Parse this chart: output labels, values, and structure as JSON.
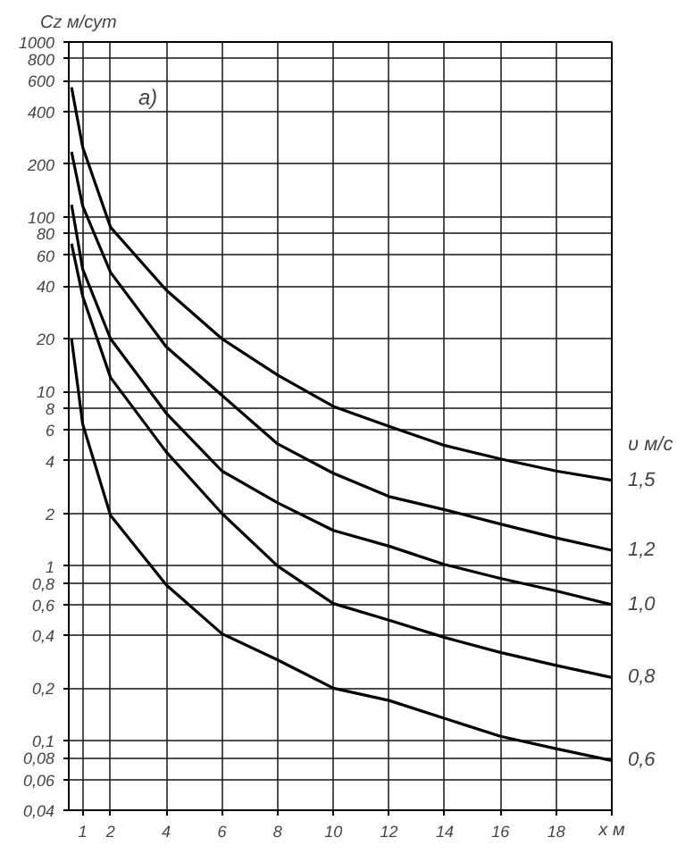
{
  "chart_data": {
    "type": "line",
    "ylabel": "Cz м/сут",
    "xlabel": "x м",
    "legend_title": "υ м/с",
    "annotations": [
      "а)"
    ],
    "x": [
      0.6,
      1,
      2,
      4,
      6,
      8,
      10,
      12,
      14,
      16,
      18,
      20
    ],
    "series": [
      {
        "name": "1,5",
        "color": "#000000",
        "values": [
          550,
          250,
          87,
          38,
          20,
          12.4,
          8.2,
          6.3,
          4.9,
          4.1,
          3.5,
          3.1
        ]
      },
      {
        "name": "1,2",
        "color": "#000000",
        "values": [
          235,
          115,
          48,
          18,
          9.5,
          5.0,
          3.4,
          2.5,
          2.1,
          1.74,
          1.45,
          1.23
        ]
      },
      {
        "name": "1,0",
        "color": "#000000",
        "values": [
          117,
          50,
          20,
          7.5,
          3.5,
          2.3,
          1.6,
          1.3,
          1.02,
          0.85,
          0.72,
          0.6
        ]
      },
      {
        "name": "0,8",
        "color": "#000000",
        "values": [
          70,
          35,
          12,
          4.5,
          2.0,
          1.0,
          0.61,
          0.49,
          0.39,
          0.32,
          0.27,
          0.23
        ]
      },
      {
        "name": "0,6",
        "color": "#000000",
        "values": [
          20,
          6.5,
          1.95,
          0.78,
          0.41,
          0.29,
          0.2,
          0.17,
          0.134,
          0.106,
          0.09,
          0.077
        ]
      }
    ],
    "log": "y",
    "grid": true,
    "marker": "none",
    "line_style": "solid",
    "xlim": [
      0.5,
      20
    ],
    "ylim": [
      0.04,
      1000
    ],
    "xticks": [
      1,
      2,
      4,
      6,
      8,
      10,
      12,
      14,
      16,
      18,
      {
        "value": 20,
        "label": null
      }
    ],
    "yticks": [
      {
        "value": 0.04,
        "label": "0,04"
      },
      {
        "value": 0.06,
        "label": "0,06"
      },
      {
        "value": 0.08,
        "label": "0,08"
      },
      {
        "value": 0.1,
        "label": "0,1"
      },
      {
        "value": 0.2,
        "label": "0,2"
      },
      {
        "value": 0.4,
        "label": "0,4"
      },
      {
        "value": 0.6,
        "label": "0,6"
      },
      {
        "value": 0.8,
        "label": "0,8"
      },
      1,
      2,
      4,
      6,
      8,
      10,
      20,
      40,
      60,
      80,
      100,
      200,
      400,
      600,
      800,
      1000
    ]
  }
}
